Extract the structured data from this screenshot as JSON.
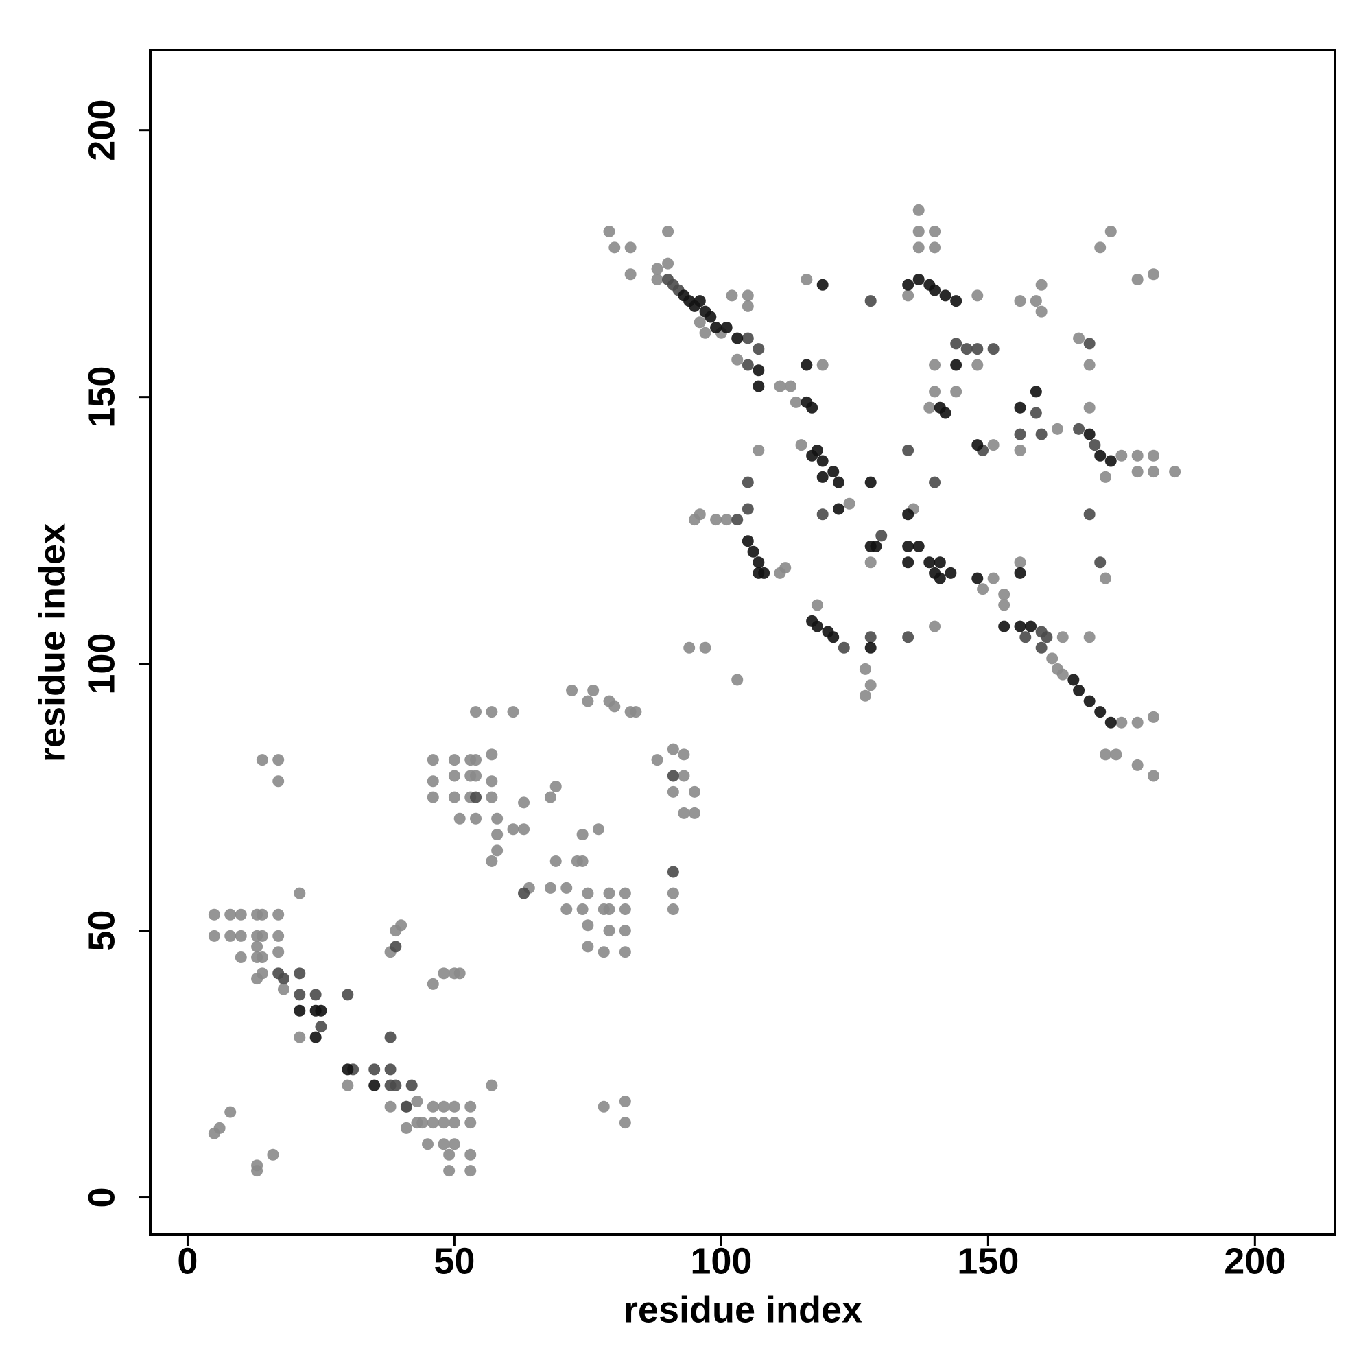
{
  "chart_data": {
    "type": "scatter",
    "xlabel": "residue index",
    "ylabel": "residue index",
    "xlim": [
      -7,
      215
    ],
    "ylim": [
      -7,
      215
    ],
    "xticks": [
      0,
      50,
      100,
      150,
      200
    ],
    "yticks": [
      0,
      50,
      100,
      150,
      200
    ],
    "series": [
      {
        "color": "#8a8a8a",
        "x": [
          5,
          5,
          8,
          10,
          13,
          14,
          17,
          8,
          10,
          13,
          14,
          17,
          10,
          13,
          13,
          14,
          17,
          13,
          14,
          14,
          17,
          17,
          21,
          21,
          18,
          30,
          38,
          41,
          43,
          41,
          43,
          46,
          48,
          50,
          53,
          44,
          46,
          48,
          50,
          53,
          45,
          48,
          50,
          49,
          53,
          49,
          53,
          57,
          5,
          6,
          8,
          13,
          13,
          16,
          38,
          40,
          39,
          46,
          48,
          50,
          51,
          46,
          50,
          53,
          54,
          57,
          46,
          50,
          53,
          54,
          57,
          46,
          50,
          53,
          57,
          51,
          54,
          58,
          58,
          57,
          58,
          54,
          57,
          61,
          61,
          63,
          63,
          64,
          68,
          71,
          69,
          73,
          74,
          68,
          69,
          71,
          74,
          75,
          75,
          78,
          79,
          82,
          82,
          82,
          82,
          78,
          79,
          75,
          79,
          74,
          77,
          72,
          76,
          75,
          79,
          80,
          83,
          84,
          88,
          91,
          93,
          93,
          91,
          95,
          93,
          95,
          91,
          91,
          78,
          82,
          82,
          88,
          90,
          90,
          79,
          80,
          83,
          83,
          88,
          96,
          97,
          100,
          103,
          105,
          105,
          102,
          95,
          99,
          96,
          101,
          107,
          94,
          97,
          103,
          111,
          112,
          111,
          113,
          114,
          116,
          119,
          115,
          118,
          124,
          127,
          128,
          127,
          128,
          136,
          140,
          137,
          137,
          140,
          137,
          140,
          135,
          148,
          140,
          140,
          144,
          139,
          151,
          156,
          163,
          149,
          151,
          153,
          153,
          156,
          162,
          163,
          164,
          175,
          178,
          181,
          172,
          174,
          178,
          181,
          164,
          169,
          159,
          156,
          160,
          167,
          169,
          169,
          172,
          175,
          178,
          181,
          178,
          181,
          185,
          171,
          173,
          178,
          181,
          172,
          148,
          160
        ],
        "values": [
          53,
          49,
          53,
          53,
          53,
          53,
          53,
          49,
          49,
          49,
          49,
          49,
          45,
          47,
          45,
          45,
          46,
          41,
          42,
          82,
          82,
          78,
          57,
          30,
          39,
          21,
          17,
          17,
          18,
          13,
          14,
          17,
          17,
          17,
          17,
          14,
          14,
          14,
          14,
          14,
          10,
          10,
          10,
          8,
          8,
          5,
          5,
          21,
          12,
          13,
          16,
          6,
          5,
          8,
          46,
          51,
          50,
          40,
          42,
          42,
          42,
          82,
          82,
          82,
          82,
          83,
          78,
          79,
          79,
          79,
          78,
          75,
          75,
          75,
          75,
          71,
          71,
          71,
          68,
          63,
          65,
          91,
          91,
          91,
          69,
          74,
          69,
          58,
          58,
          58,
          63,
          63,
          63,
          75,
          77,
          54,
          54,
          51,
          47,
          54,
          54,
          57,
          54,
          50,
          46,
          46,
          50,
          57,
          57,
          68,
          69,
          95,
          95,
          93,
          93,
          92,
          91,
          91,
          82,
          84,
          83,
          79,
          76,
          76,
          72,
          72,
          57,
          54,
          17,
          18,
          14,
          174,
          175,
          181,
          181,
          178,
          178,
          173,
          172,
          164,
          162,
          162,
          157,
          167,
          169,
          169,
          127,
          127,
          128,
          127,
          140,
          103,
          103,
          97,
          117,
          118,
          152,
          152,
          149,
          172,
          156,
          141,
          111,
          130,
          99,
          96,
          94,
          119,
          129,
          107,
          185,
          181,
          181,
          178,
          178,
          169,
          169,
          156,
          151,
          151,
          148,
          141,
          140,
          144,
          114,
          116,
          113,
          111,
          119,
          101,
          99,
          98,
          89,
          89,
          90,
          83,
          83,
          81,
          79,
          105,
          105,
          168,
          168,
          171,
          161,
          156,
          148,
          135,
          139,
          139,
          139,
          136,
          136,
          136,
          178,
          181,
          172,
          173,
          116,
          156,
          166
        ]
      },
      {
        "color": "#4a4a4a",
        "x": [
          17,
          18,
          21,
          21,
          24,
          25,
          30,
          31,
          35,
          38,
          38,
          39,
          42,
          38,
          41,
          39,
          54,
          63,
          91,
          91,
          90,
          91,
          92,
          105,
          105,
          119,
          135,
          135,
          140,
          130,
          123,
          128,
          149,
          156,
          159,
          160,
          157,
          160,
          167,
          169,
          170,
          144,
          146,
          148,
          151,
          169,
          103,
          105,
          107,
          105,
          171,
          128,
          160,
          161
        ],
        "values": [
          42,
          41,
          42,
          38,
          38,
          32,
          38,
          24,
          24,
          24,
          21,
          21,
          21,
          30,
          17,
          47,
          75,
          57,
          61,
          79,
          172,
          171,
          170,
          161,
          134,
          128,
          105,
          140,
          134,
          124,
          103,
          105,
          140,
          143,
          147,
          143,
          105,
          106,
          144,
          128,
          141,
          160,
          159,
          159,
          159,
          160,
          127,
          129,
          159,
          156,
          119,
          168,
          103,
          105
        ]
      },
      {
        "color": "#121212",
        "x": [
          21,
          24,
          25,
          24,
          30,
          35,
          93,
          94,
          96,
          95,
          97,
          98,
          99,
          101,
          103,
          107,
          107,
          105,
          106,
          107,
          108,
          107,
          116,
          117,
          116,
          117,
          118,
          119,
          119,
          121,
          122,
          122,
          117,
          118,
          120,
          121,
          128,
          119,
          128,
          129,
          128,
          135,
          135,
          137,
          139,
          140,
          141,
          141,
          143,
          137,
          139,
          140,
          142,
          144,
          135,
          144,
          141,
          142,
          148,
          156,
          159,
          148,
          156,
          153,
          156,
          158,
          166,
          167,
          169,
          171,
          173,
          169,
          171,
          173,
          135
        ],
        "values": [
          35,
          35,
          35,
          30,
          24,
          21,
          169,
          168,
          168,
          167,
          166,
          165,
          163,
          163,
          161,
          155,
          152,
          123,
          121,
          119,
          117,
          117,
          156,
          148,
          149,
          139,
          140,
          138,
          135,
          136,
          134,
          129,
          108,
          107,
          106,
          105,
          103,
          171,
          122,
          122,
          134,
          122,
          119,
          122,
          119,
          117,
          119,
          116,
          117,
          172,
          171,
          170,
          169,
          168,
          171,
          156,
          148,
          147,
          141,
          148,
          151,
          116,
          117,
          107,
          107,
          107,
          97,
          95,
          93,
          91,
          89,
          143,
          139,
          138,
          128
        ]
      }
    ]
  }
}
